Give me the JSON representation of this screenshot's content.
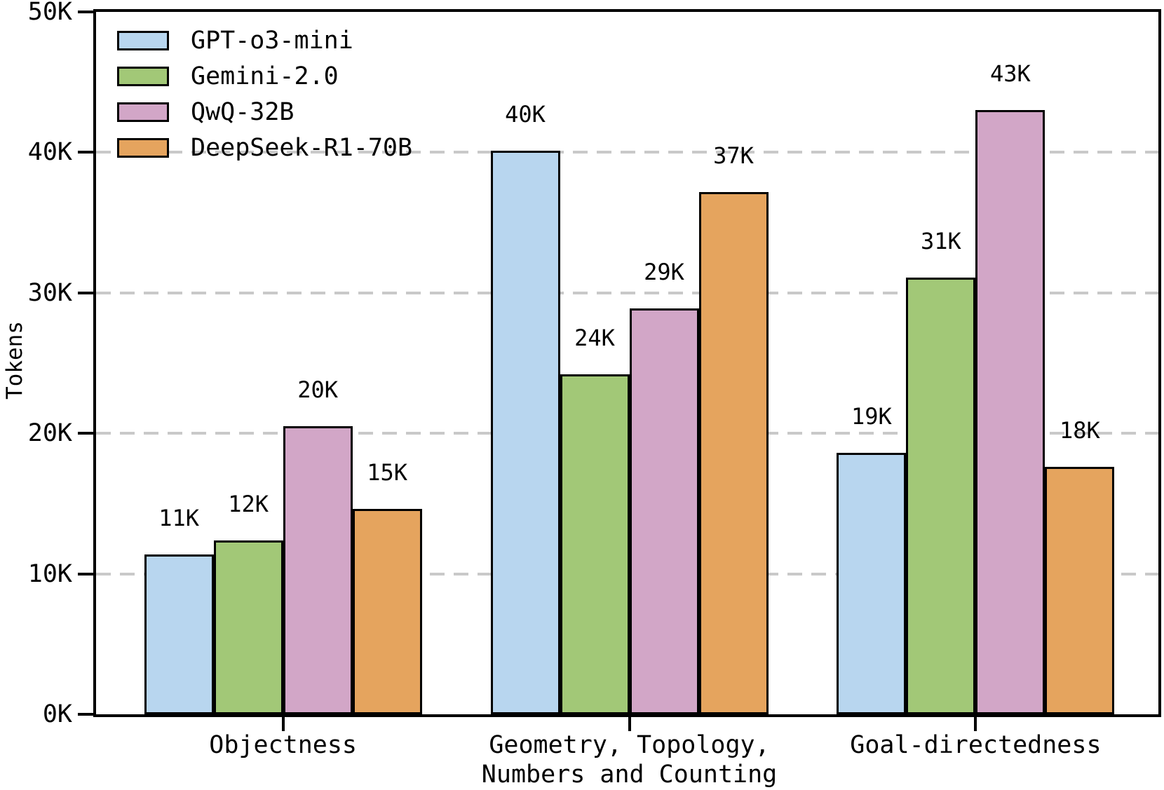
{
  "chart_data": {
    "type": "bar",
    "title": "",
    "xlabel": "",
    "ylabel": "Tokens",
    "unit": "K tokens",
    "ylim": [
      0,
      50
    ],
    "grid": "horizontal-dashed",
    "legend_position": "upper-left",
    "yticks": [
      {
        "value": 0,
        "label": "0K",
        "grid": false
      },
      {
        "value": 10,
        "label": "10K",
        "grid": true
      },
      {
        "value": 20,
        "label": "20K",
        "grid": true
      },
      {
        "value": 30,
        "label": "30K",
        "grid": true
      },
      {
        "value": 40,
        "label": "40K",
        "grid": true
      },
      {
        "value": 50,
        "label": "50K",
        "grid": false
      }
    ],
    "categories": [
      {
        "lines": [
          "Objectness"
        ]
      },
      {
        "lines": [
          "Geometry, Topology,",
          "Numbers and Counting"
        ]
      },
      {
        "lines": [
          "Goal-directedness"
        ]
      }
    ],
    "series": [
      {
        "name": "GPT-o3-mini",
        "color": "#b8d6ef",
        "values": [
          11.4,
          40.1,
          18.6
        ],
        "value_labels": [
          "11K",
          "40K",
          "19K"
        ]
      },
      {
        "name": "Gemini-2.0",
        "color": "#a2c877",
        "values": [
          12.4,
          24.2,
          31.1
        ],
        "value_labels": [
          "12K",
          "24K",
          "31K"
        ]
      },
      {
        "name": "QwQ-32B",
        "color": "#d2a6c7",
        "values": [
          20.5,
          28.9,
          43.0
        ],
        "value_labels": [
          "20K",
          "29K",
          "43K"
        ]
      },
      {
        "name": "DeepSeek-R1-70B",
        "color": "#e5a45e",
        "values": [
          14.6,
          37.2,
          17.6
        ],
        "value_labels": [
          "15K",
          "37K",
          "18K"
        ]
      }
    ],
    "colors": {
      "axis": "#000000",
      "grid": "#c9c9c9",
      "text": "#000000",
      "background": "#ffffff"
    }
  }
}
